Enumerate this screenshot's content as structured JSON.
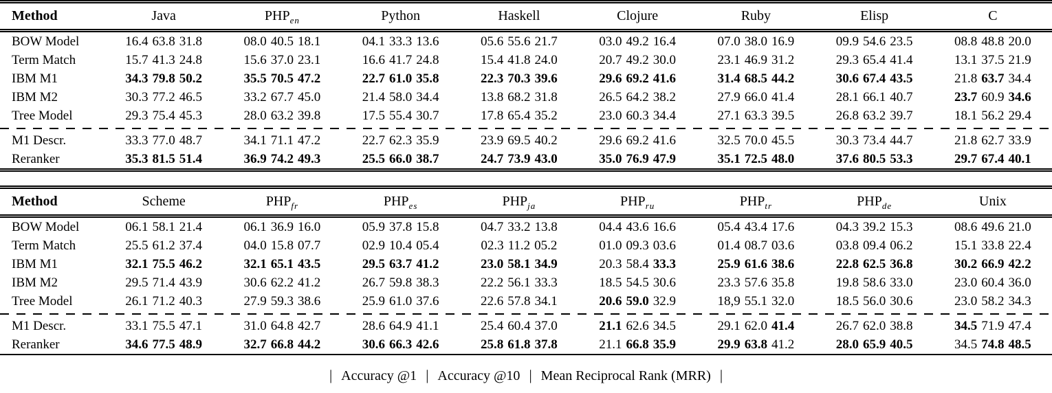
{
  "caption": {
    "separator": "|",
    "items": [
      "Accuracy @1",
      "Accuracy @10",
      "Mean Reciprocal Rank (MRR)"
    ]
  },
  "tables": [
    {
      "method_header": "Method",
      "columns": [
        {
          "label": "Java",
          "sub": ""
        },
        {
          "label": "PHP",
          "sub": "en"
        },
        {
          "label": "Python",
          "sub": ""
        },
        {
          "label": "Haskell",
          "sub": ""
        },
        {
          "label": "Clojure",
          "sub": ""
        },
        {
          "label": "Ruby",
          "sub": ""
        },
        {
          "label": "Elisp",
          "sub": ""
        },
        {
          "label": "C",
          "sub": ""
        }
      ],
      "rows": [
        {
          "method": "BOW Model",
          "dashed_top": false,
          "cells": [
            {
              "t": "16.4 63.8 31.8",
              "m": "000"
            },
            {
              "t": "08.0 40.5 18.1",
              "m": "000"
            },
            {
              "t": "04.1 33.3 13.6",
              "m": "000"
            },
            {
              "t": "05.6 55.6 21.7",
              "m": "000"
            },
            {
              "t": "03.0 49.2 16.4",
              "m": "000"
            },
            {
              "t": "07.0 38.0 16.9",
              "m": "000"
            },
            {
              "t": "09.9 54.6 23.5",
              "m": "000"
            },
            {
              "t": "08.8 48.8 20.0",
              "m": "000"
            }
          ]
        },
        {
          "method": "Term Match",
          "dashed_top": false,
          "cells": [
            {
              "t": "15.7 41.3 24.8",
              "m": "000"
            },
            {
              "t": "15.6 37.0 23.1",
              "m": "000"
            },
            {
              "t": "16.6 41.7 24.8",
              "m": "000"
            },
            {
              "t": "15.4 41.8 24.0",
              "m": "000"
            },
            {
              "t": "20.7 49.2 30.0",
              "m": "000"
            },
            {
              "t": "23.1 46.9 31.2",
              "m": "000"
            },
            {
              "t": "29.3 65.4 41.4",
              "m": "000"
            },
            {
              "t": "13.1 37.5 21.9",
              "m": "000"
            }
          ]
        },
        {
          "method": "IBM M1",
          "dashed_top": false,
          "cells": [
            {
              "t": "34.3 79.8 50.2",
              "m": "111"
            },
            {
              "t": "35.5 70.5 47.2",
              "m": "111"
            },
            {
              "t": "22.7 61.0 35.8",
              "m": "111"
            },
            {
              "t": "22.3 70.3 39.6",
              "m": "111"
            },
            {
              "t": "29.6 69.2 41.6",
              "m": "111"
            },
            {
              "t": "31.4 68.5 44.2",
              "m": "111"
            },
            {
              "t": "30.6 67.4 43.5",
              "m": "111"
            },
            {
              "t": "21.8 63.7 34.4",
              "m": "010"
            }
          ]
        },
        {
          "method": "IBM M2",
          "dashed_top": false,
          "cells": [
            {
              "t": "30.3 77.2 46.5",
              "m": "000"
            },
            {
              "t": "33.2 67.7 45.0",
              "m": "000"
            },
            {
              "t": "21.4 58.0 34.4",
              "m": "000"
            },
            {
              "t": "13.8 68.2 31.8",
              "m": "000"
            },
            {
              "t": "26.5 64.2 38.2",
              "m": "000"
            },
            {
              "t": "27.9 66.0 41.4",
              "m": "000"
            },
            {
              "t": "28.1 66.1 40.7",
              "m": "000"
            },
            {
              "t": "23.7 60.9 34.6",
              "m": "101"
            }
          ]
        },
        {
          "method": "Tree Model",
          "dashed_top": false,
          "cells": [
            {
              "t": "29.3 75.4 45.3",
              "m": "000"
            },
            {
              "t": "28.0 63.2 39.8",
              "m": "000"
            },
            {
              "t": "17.5 55.4 30.7",
              "m": "000"
            },
            {
              "t": "17.8 65.4 35.2",
              "m": "000"
            },
            {
              "t": "23.0 60.3 34.4",
              "m": "000"
            },
            {
              "t": "27.1 63.3 39.5",
              "m": "000"
            },
            {
              "t": "26.8 63.2 39.7",
              "m": "000"
            },
            {
              "t": "18.1 56.2 29.4",
              "m": "000"
            }
          ]
        },
        {
          "method": "M1 Descr.",
          "dashed_top": true,
          "cells": [
            {
              "t": "33.3 77.0 48.7",
              "m": "000"
            },
            {
              "t": "34.1 71.1 47.2",
              "m": "000"
            },
            {
              "t": "22.7 62.3 35.9",
              "m": "000"
            },
            {
              "t": "23.9 69.5 40.2",
              "m": "000"
            },
            {
              "t": "29.6 69.2 41.6",
              "m": "000"
            },
            {
              "t": "32.5 70.0 45.5",
              "m": "000"
            },
            {
              "t": "30.3 73.4 44.7",
              "m": "000"
            },
            {
              "t": "21.8 62.7 33.9",
              "m": "000"
            }
          ]
        },
        {
          "method": "Reranker",
          "dashed_top": false,
          "cells": [
            {
              "t": "35.3 81.5 51.4",
              "m": "111"
            },
            {
              "t": "36.9 74.2 49.3",
              "m": "111"
            },
            {
              "t": "25.5 66.0 38.7",
              "m": "111"
            },
            {
              "t": "24.7 73.9 43.0",
              "m": "111"
            },
            {
              "t": "35.0 76.9 47.9",
              "m": "111"
            },
            {
              "t": "35.1 72.5 48.0",
              "m": "111"
            },
            {
              "t": "37.6 80.5 53.3",
              "m": "111"
            },
            {
              "t": "29.7 67.4 40.1",
              "m": "111"
            }
          ]
        }
      ]
    },
    {
      "method_header": "Method",
      "columns": [
        {
          "label": "Scheme",
          "sub": ""
        },
        {
          "label": "PHP",
          "sub": "fr"
        },
        {
          "label": "PHP",
          "sub": "es"
        },
        {
          "label": "PHP",
          "sub": "ja"
        },
        {
          "label": "PHP",
          "sub": "ru"
        },
        {
          "label": "PHP",
          "sub": "tr"
        },
        {
          "label": "PHP",
          "sub": "de"
        },
        {
          "label": "Unix",
          "sub": ""
        }
      ],
      "rows": [
        {
          "method": "BOW Model",
          "dashed_top": false,
          "cells": [
            {
              "t": "06.1 58.1 21.4",
              "m": "000"
            },
            {
              "t": "06.1 36.9 16.0",
              "m": "000"
            },
            {
              "t": "05.9 37.8 15.8",
              "m": "000"
            },
            {
              "t": "04.7 33.2 13.8",
              "m": "000"
            },
            {
              "t": "04.4 43.6 16.6",
              "m": "000"
            },
            {
              "t": "05.4 43.4 17.6",
              "m": "000"
            },
            {
              "t": "04.3 39.2 15.3",
              "m": "000"
            },
            {
              "t": "08.6 49.6 21.0",
              "m": "000"
            }
          ]
        },
        {
          "method": "Term Match",
          "dashed_top": false,
          "cells": [
            {
              "t": "25.5 61.2 37.4",
              "m": "000"
            },
            {
              "t": "04.0 15.8 07.7",
              "m": "000"
            },
            {
              "t": "02.9 10.4 05.4",
              "m": "000"
            },
            {
              "t": "02.3 11.2 05.2",
              "m": "000"
            },
            {
              "t": "01.0 09.3 03.6",
              "m": "000"
            },
            {
              "t": "01.4 08.7 03.6",
              "m": "000"
            },
            {
              "t": "03.8 09.4 06.2",
              "m": "000"
            },
            {
              "t": "15.1 33.8 22.4",
              "m": "000"
            }
          ]
        },
        {
          "method": "IBM M1",
          "dashed_top": false,
          "cells": [
            {
              "t": "32.1 75.5 46.2",
              "m": "111"
            },
            {
              "t": "32.1 65.1 43.5",
              "m": "111"
            },
            {
              "t": "29.5 63.7 41.2",
              "m": "111"
            },
            {
              "t": "23.0 58.1 34.9",
              "m": "111"
            },
            {
              "t": "20.3 58.4 33.3",
              "m": "001"
            },
            {
              "t": "25.9 61.6 38.6",
              "m": "111"
            },
            {
              "t": "22.8 62.5 36.8",
              "m": "111"
            },
            {
              "t": "30.2 66.9 42.2",
              "m": "111"
            }
          ]
        },
        {
          "method": "IBM M2",
          "dashed_top": false,
          "cells": [
            {
              "t": "29.5 71.4 43.9",
              "m": "000"
            },
            {
              "t": "30.6 62.2 41.2",
              "m": "000"
            },
            {
              "t": "26.7 59.8 38.3",
              "m": "000"
            },
            {
              "t": "22.2 56.1 33.3",
              "m": "000"
            },
            {
              "t": "18.5 54.5 30.6",
              "m": "000"
            },
            {
              "t": "23.3 57.6 35.8",
              "m": "000"
            },
            {
              "t": "19.8 58.6 33.0",
              "m": "000"
            },
            {
              "t": "23.0 60.4 36.0",
              "m": "000"
            }
          ]
        },
        {
          "method": "Tree Model",
          "dashed_top": false,
          "cells": [
            {
              "t": "26.1 71.2 40.3",
              "m": "000"
            },
            {
              "t": "27.9 59.3 38.6",
              "m": "000"
            },
            {
              "t": "25.9 61.0 37.6",
              "m": "000"
            },
            {
              "t": "22.6 57.8 34.1",
              "m": "000"
            },
            {
              "t": "20.6 59.0 32.9",
              "m": "110"
            },
            {
              "t": "18,9 55.1 32.0",
              "m": "000"
            },
            {
              "t": "18.5 56.0 30.6",
              "m": "000"
            },
            {
              "t": "23.0 58.2 34.3",
              "m": "000"
            }
          ]
        },
        {
          "method": "M1 Descr.",
          "dashed_top": true,
          "cells": [
            {
              "t": "33.1 75.5 47.1",
              "m": "000"
            },
            {
              "t": "31.0 64.8 42.7",
              "m": "000"
            },
            {
              "t": "28.6 64.9 41.1",
              "m": "000"
            },
            {
              "t": "25.4 60.4 37.0",
              "m": "000"
            },
            {
              "t": "21.1 62.6 34.5",
              "m": "100"
            },
            {
              "t": "29.1 62.0 41.4",
              "m": "001"
            },
            {
              "t": "26.7 62.0 38.8",
              "m": "000"
            },
            {
              "t": "34.5 71.9 47.4",
              "m": "100"
            }
          ]
        },
        {
          "method": "Reranker",
          "dashed_top": false,
          "cells": [
            {
              "t": "34.6 77.5 48.9",
              "m": "111"
            },
            {
              "t": "32.7 66.8 44.2",
              "m": "111"
            },
            {
              "t": "30.6 66.3 42.6",
              "m": "111"
            },
            {
              "t": "25.8 61.8 37.8",
              "m": "111"
            },
            {
              "t": "21.1 66.8 35.9",
              "m": "011"
            },
            {
              "t": "29.9 63.8 41.2",
              "m": "110"
            },
            {
              "t": "28.0 65.9 40.5",
              "m": "111"
            },
            {
              "t": "34.5 74.8 48.5",
              "m": "011"
            }
          ]
        }
      ]
    }
  ]
}
